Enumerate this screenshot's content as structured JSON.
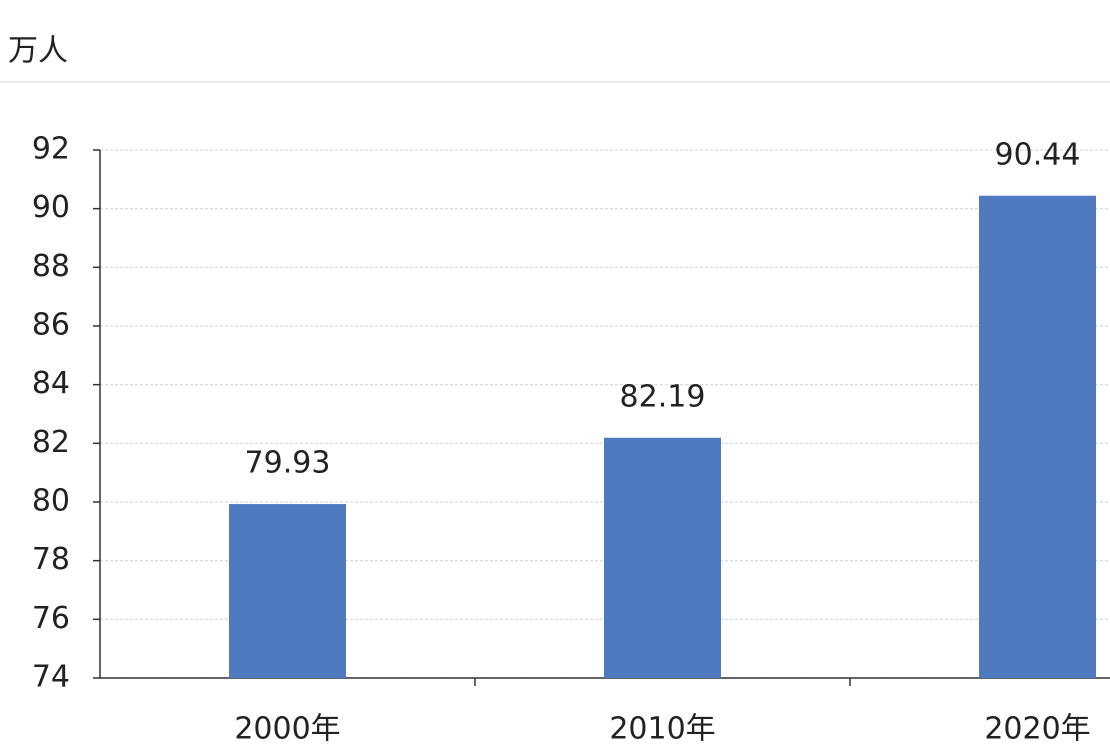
{
  "chart_data": {
    "type": "bar",
    "ylabel": "万人",
    "categories": [
      "2000年",
      "2010年",
      "2020年"
    ],
    "values": [
      79.93,
      82.19,
      90.44
    ],
    "color": "#4f7ac0",
    "ylim": [
      74,
      92
    ],
    "yticks": [
      74,
      76,
      78,
      80,
      82,
      84,
      86,
      88,
      90,
      92
    ],
    "grid": true
  }
}
